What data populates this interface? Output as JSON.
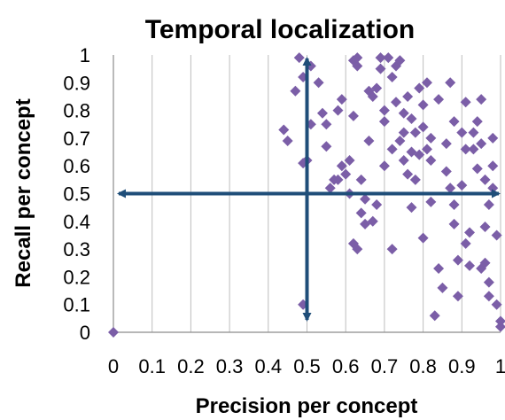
{
  "chart_data": {
    "type": "scatter",
    "title": "Temporal localization",
    "xlabel": "Precision per concept",
    "ylabel": "Recall per concept",
    "xlim": [
      0,
      1
    ],
    "ylim": [
      0,
      1
    ],
    "x_ticks": [
      "0",
      "0.1",
      "0.2",
      "0.3",
      "0.4",
      "0.5",
      "0.6",
      "0.7",
      "0.8",
      "0.9",
      "1"
    ],
    "y_ticks": [
      "0",
      "0.1",
      "0.2",
      "0.3",
      "0.4",
      "0.5",
      "0.6",
      "0.7",
      "0.8",
      "0.9",
      "1"
    ],
    "grid": "vertical",
    "marker": "diamond",
    "marker_color": "#7B5EA7",
    "arrow_color": "#1F4E79",
    "reference_arrows": [
      {
        "orientation": "horizontal",
        "value": 0.5
      },
      {
        "orientation": "vertical",
        "value": 0.5
      }
    ],
    "series": [
      {
        "points": [
          [
            0.0,
            0.0
          ],
          [
            0.44,
            0.73
          ],
          [
            0.45,
            0.69
          ],
          [
            0.47,
            0.87
          ],
          [
            0.48,
            0.99
          ],
          [
            0.49,
            0.92
          ],
          [
            0.49,
            0.61
          ],
          [
            0.5,
            0.62
          ],
          [
            0.49,
            0.1
          ],
          [
            0.51,
            0.75
          ],
          [
            0.51,
            0.96
          ],
          [
            0.53,
            0.9
          ],
          [
            0.54,
            0.79
          ],
          [
            0.55,
            0.67
          ],
          [
            0.55,
            0.75
          ],
          [
            0.56,
            0.52
          ],
          [
            0.57,
            0.55
          ],
          [
            0.58,
            0.8
          ],
          [
            0.58,
            0.55
          ],
          [
            0.59,
            0.84
          ],
          [
            0.59,
            0.6
          ],
          [
            0.6,
            0.57
          ],
          [
            0.61,
            0.62
          ],
          [
            0.61,
            0.5
          ],
          [
            0.62,
            0.78
          ],
          [
            0.62,
            0.98
          ],
          [
            0.63,
            0.96
          ],
          [
            0.63,
            0.99
          ],
          [
            0.62,
            0.32
          ],
          [
            0.63,
            0.3
          ],
          [
            0.64,
            0.43
          ],
          [
            0.64,
            0.55
          ],
          [
            0.65,
            0.48
          ],
          [
            0.65,
            0.39
          ],
          [
            0.66,
            0.87
          ],
          [
            0.66,
            0.69
          ],
          [
            0.67,
            0.4
          ],
          [
            0.67,
            0.85
          ],
          [
            0.68,
            0.88
          ],
          [
            0.68,
            0.46
          ],
          [
            0.69,
            0.95
          ],
          [
            0.69,
            0.99
          ],
          [
            0.7,
            0.8
          ],
          [
            0.7,
            0.76
          ],
          [
            0.7,
            0.6
          ],
          [
            0.71,
            0.99
          ],
          [
            0.72,
            0.92
          ],
          [
            0.72,
            0.66
          ],
          [
            0.72,
            0.3
          ],
          [
            0.73,
            0.96
          ],
          [
            0.73,
            0.83
          ],
          [
            0.74,
            0.98
          ],
          [
            0.74,
            0.69
          ],
          [
            0.75,
            0.79
          ],
          [
            0.75,
            0.62
          ],
          [
            0.75,
            0.72
          ],
          [
            0.76,
            0.85
          ],
          [
            0.76,
            0.57
          ],
          [
            0.77,
            0.77
          ],
          [
            0.77,
            0.65
          ],
          [
            0.77,
            0.45
          ],
          [
            0.78,
            0.72
          ],
          [
            0.78,
            0.55
          ],
          [
            0.79,
            0.88
          ],
          [
            0.79,
            0.64
          ],
          [
            0.8,
            0.74
          ],
          [
            0.8,
            0.82
          ],
          [
            0.8,
            0.34
          ],
          [
            0.81,
            0.9
          ],
          [
            0.81,
            0.66
          ],
          [
            0.82,
            0.7
          ],
          [
            0.82,
            0.62
          ],
          [
            0.82,
            0.47
          ],
          [
            0.83,
            0.06
          ],
          [
            0.84,
            0.23
          ],
          [
            0.84,
            0.84
          ],
          [
            0.85,
            0.16
          ],
          [
            0.86,
            0.68
          ],
          [
            0.86,
            0.58
          ],
          [
            0.87,
            0.52
          ],
          [
            0.87,
            0.9
          ],
          [
            0.88,
            0.76
          ],
          [
            0.88,
            0.46
          ],
          [
            0.88,
            0.39
          ],
          [
            0.89,
            0.13
          ],
          [
            0.89,
            0.26
          ],
          [
            0.9,
            0.72
          ],
          [
            0.9,
            0.53
          ],
          [
            0.91,
            0.66
          ],
          [
            0.91,
            0.83
          ],
          [
            0.91,
            0.32
          ],
          [
            0.92,
            0.36
          ],
          [
            0.92,
            0.24
          ],
          [
            0.93,
            0.72
          ],
          [
            0.93,
            0.66
          ],
          [
            0.94,
            0.59
          ],
          [
            0.94,
            0.76
          ],
          [
            0.95,
            0.84
          ],
          [
            0.95,
            0.68
          ],
          [
            0.95,
            0.23
          ],
          [
            0.96,
            0.55
          ],
          [
            0.96,
            0.25
          ],
          [
            0.96,
            0.38
          ],
          [
            0.97,
            0.46
          ],
          [
            0.97,
            0.18
          ],
          [
            0.97,
            0.13
          ],
          [
            0.98,
            0.6
          ],
          [
            0.98,
            0.7
          ],
          [
            0.98,
            0.52
          ],
          [
            0.99,
            0.35
          ],
          [
            0.99,
            0.1
          ],
          [
            1.0,
            0.02
          ],
          [
            1.0,
            0.04
          ]
        ]
      }
    ]
  }
}
